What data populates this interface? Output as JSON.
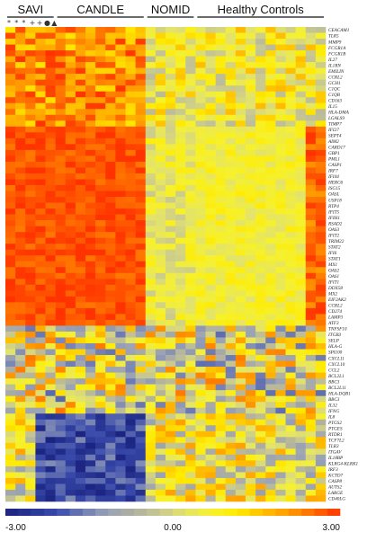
{
  "chart_data": {
    "type": "heatmap",
    "groups": [
      {
        "label": "SAVI",
        "n_cols": 5,
        "markers": [
          "*",
          "*",
          "*",
          "+",
          "+"
        ]
      },
      {
        "label": "CANDLE",
        "n_cols": 9,
        "markers": []
      },
      {
        "label": "NOMID",
        "n_cols": 5,
        "markers": []
      },
      {
        "label": "Healthy Controls",
        "n_cols": 13,
        "markers": []
      }
    ],
    "extra_markers": [
      "●",
      "▲"
    ],
    "genes": [
      "CEACAM1",
      "TLR5",
      "MMP9",
      "FCGR1A",
      "FCGR1B",
      "IL27",
      "IL1RN",
      "EMILIN",
      "CCRL2",
      "GCH1",
      "C1QC",
      "C1QB",
      "CD163",
      "IL15",
      "HLA-DMA",
      "LGALS9",
      "TIMP7",
      "IFI27",
      "SEPT4",
      "AIM2",
      "CARD17",
      "GBP1",
      "PML1",
      "CASP1",
      "IRF7",
      "IFI44",
      "HERC6",
      "ISG15",
      "OASL",
      "USP18",
      "RTP4",
      "IFIT5",
      "IFIH1",
      "RSAD2",
      "OAS3",
      "IFIT2",
      "TRIM22",
      "STAT2",
      "IFI6",
      "STAT1",
      "MX1",
      "OAS2",
      "OAS1",
      "IFIT1",
      "DDX58",
      "MX2",
      "EIF2AK2",
      "CCRL2",
      "CD274",
      "LAMP3",
      "ATF3",
      "TNFSF10",
      "ITGB3",
      "SELP",
      "HLA-G",
      "SPI100",
      "CXCL11",
      "CXCL10",
      "CCL2",
      "BCL2L1",
      "BBC3",
      "BCL2L11",
      "HLA-DQB1",
      "BBC3",
      "IL32",
      "IFNG",
      "IL8",
      "PTGS2",
      "PTGES",
      "RTDR1",
      "TCF7L2",
      "TLR3",
      "ITGAV",
      "IL18BP",
      "KLRG4-KLRK1",
      "IRF3",
      "KCTD7",
      "CASP8",
      "AUTS2",
      "LARGE",
      "CD40LG"
    ],
    "color_scale": {
      "min": -3.0,
      "max": 3.0,
      "stops": [
        "#1a237e",
        "#283593",
        "#3949ab",
        "#6e7bb3",
        "#9aa2b5",
        "#b0b0a0",
        "#c8c891",
        "#e3e36c",
        "#f6f12d",
        "#ffeb00",
        "#ffc000",
        "#ff9a00",
        "#ff6a00",
        "#ff3300"
      ],
      "tick_labels": [
        "-3.00",
        "0.00",
        "3.00"
      ]
    }
  },
  "colors": {
    "high": "#ff3300",
    "mid": "#f6f12d",
    "low": "#1a237e"
  }
}
